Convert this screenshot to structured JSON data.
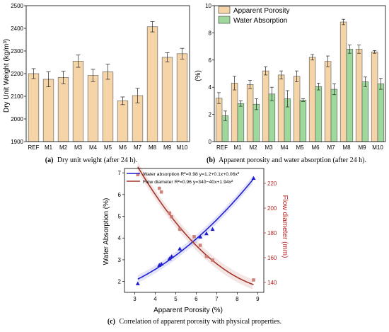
{
  "captions": {
    "a_label": "(a)",
    "a_text": "Dry unit weight (after 24 h).",
    "b_label": "(b)",
    "b_text": "Apparent porosity and water absorption (after 24 h).",
    "c_label": "(c)",
    "c_text": "Correlation of apparent porosity with physical properties."
  },
  "chart_data": [
    {
      "id": "a",
      "type": "bar",
      "title": "",
      "xlabel": "",
      "ylabel": "Dry Unit Weight (kg/m³)",
      "ylim": [
        1900,
        2500
      ],
      "yticks": [
        1900,
        2000,
        2100,
        2200,
        2300,
        2400,
        2500
      ],
      "categories": [
        "REF",
        "M1",
        "M2",
        "M3",
        "M4",
        "M5",
        "M6",
        "M7",
        "M8",
        "M9",
        "M10"
      ],
      "values": [
        2200,
        2175,
        2183,
        2255,
        2192,
        2208,
        2080,
        2103,
        2407,
        2272,
        2288
      ],
      "errors": [
        22,
        33,
        28,
        27,
        27,
        33,
        17,
        32,
        23,
        20,
        24
      ],
      "color": "#f5d5a8",
      "grid": false
    },
    {
      "id": "b",
      "type": "bar",
      "title": "",
      "xlabel": "",
      "ylabel": "(%)",
      "ylim": [
        0,
        10
      ],
      "yticks": [
        0,
        2,
        4,
        6,
        8,
        10
      ],
      "categories": [
        "REF",
        "M1",
        "M2",
        "M3",
        "M4",
        "M5",
        "M6",
        "M7",
        "M8",
        "M9",
        "M10"
      ],
      "series": [
        {
          "name": "Apparent Porosity",
          "color": "#f5d5a8",
          "values": [
            3.2,
            4.3,
            4.2,
            5.2,
            4.9,
            4.8,
            6.2,
            5.9,
            8.8,
            6.8,
            6.6
          ],
          "errors": [
            0.4,
            0.5,
            0.3,
            0.3,
            0.3,
            0.4,
            0.2,
            0.4,
            0.2,
            0.3,
            0.1
          ]
        },
        {
          "name": "Water Absorption",
          "color": "#9fd89b",
          "values": [
            1.9,
            2.8,
            2.75,
            3.5,
            3.15,
            3.05,
            4.05,
            3.85,
            6.8,
            4.4,
            4.25
          ],
          "errors": [
            0.35,
            0.2,
            0.4,
            0.5,
            0.6,
            0.1,
            0.25,
            0.4,
            0.3,
            0.35,
            0.4
          ]
        }
      ],
      "legend": "top-left",
      "grid": false
    },
    {
      "id": "c",
      "type": "scatter",
      "title": "",
      "xlabel": "Apparent Porosity (%)",
      "ylabel": "Water Absorption (%)",
      "y2label": "Flow diameter (mm)",
      "xlim": [
        2.5,
        9.3
      ],
      "xticks": [
        3,
        4,
        5,
        6,
        7,
        8,
        9
      ],
      "ylim": [
        1.5,
        7.2
      ],
      "yticks": [
        2,
        3,
        4,
        5,
        6,
        7
      ],
      "y2lim": [
        132,
        232
      ],
      "y2ticks": [
        140,
        160,
        180,
        200,
        220
      ],
      "legend": "top",
      "series": [
        {
          "name": "Water absorption R²=0.98 y=1.2+0.1x+0.06x²",
          "color": "#1f1fd0",
          "marker": "triangle",
          "axis": "left",
          "x": [
            3.15,
            4.2,
            4.3,
            4.7,
            4.8,
            5.2,
            6.2,
            6.5,
            6.8,
            8.8
          ],
          "y": [
            1.9,
            2.75,
            2.8,
            3.05,
            3.15,
            3.5,
            4.05,
            4.2,
            4.4,
            6.75
          ],
          "fit": [
            1.2,
            0.1,
            0.06
          ]
        },
        {
          "name": "Flow diameter R²=0.96 y=340−40x+1.94x²",
          "color": "#a5342b",
          "marker": "square",
          "axis": "right",
          "x": [
            3.15,
            4.2,
            4.3,
            4.7,
            4.8,
            5.2,
            5.9,
            6.2,
            6.5,
            6.8,
            8.8
          ],
          "y": [
            227,
            216,
            213,
            196,
            193,
            183,
            177,
            170,
            161,
            158,
            142
          ],
          "fit": [
            340,
            -40,
            1.94
          ]
        }
      ],
      "grid": false
    }
  ]
}
